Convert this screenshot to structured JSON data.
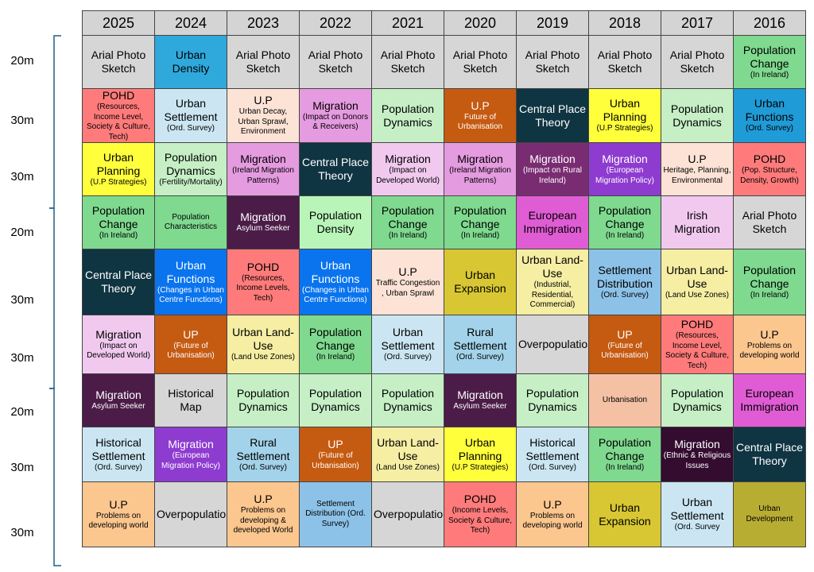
{
  "years": [
    "2025",
    "2024",
    "2023",
    "2022",
    "2021",
    "2020",
    "2019",
    "2018",
    "2017",
    "2016"
  ],
  "marks": [
    "20m",
    "30m",
    "30m",
    "20m",
    "30m",
    "30m",
    "20m",
    "30m",
    "30m"
  ],
  "rows": [
    [
      {
        "t": "Arial Photo Sketch",
        "bg": "#d6d6d6"
      },
      {
        "t": "Urban Density",
        "bg": "#2fa9dc"
      },
      {
        "t": "Arial Photo Sketch",
        "bg": "#d6d6d6"
      },
      {
        "t": "Arial Photo Sketch",
        "bg": "#d6d6d6"
      },
      {
        "t": "Arial Photo Sketch",
        "bg": "#d6d6d6"
      },
      {
        "t": "Arial Photo Sketch",
        "bg": "#d6d6d6"
      },
      {
        "t": "Arial Photo Sketch",
        "bg": "#d6d6d6"
      },
      {
        "t": "Arial Photo Sketch",
        "bg": "#d6d6d6"
      },
      {
        "t": "Arial Photo Sketch",
        "bg": "#d6d6d6"
      },
      {
        "t": "Population Change",
        "s": "(In Ireland)",
        "bg": "#7fd98f"
      }
    ],
    [
      {
        "t": "POHD",
        "s": "(Resources, Income Level, Society & Culture, Tech)",
        "bg": "#ff7b7b"
      },
      {
        "t": "Urban Settlement",
        "s": "(Ord. Survey)",
        "bg": "#cbe6f2"
      },
      {
        "t": "U.P",
        "s": "Urban Decay, Urban Sprawl, Environment",
        "bg": "#fde3d6"
      },
      {
        "t": "Migration",
        "s": "(Impact on Donors & Receivers)",
        "bg": "#e59be0"
      },
      {
        "t": "Population Dynamics",
        "bg": "#c6efc6"
      },
      {
        "t": "U.P",
        "s": "Future of Urbanisation",
        "bg": "#c55a11",
        "fg": "#ffffff"
      },
      {
        "t": "Central Place Theory",
        "bg": "#0f3442",
        "fg": "#ffffff"
      },
      {
        "t": "Urban Planning",
        "s": "(U.P Strategies)",
        "bg": "#ffff3c"
      },
      {
        "t": "Population Dynamics",
        "bg": "#c6efc6"
      },
      {
        "t": "Urban Functions",
        "s": "(Ord. Survey)",
        "bg": "#1f9bd7"
      }
    ],
    [
      {
        "t": "Urban Planning",
        "s": "(U.P Strategies)",
        "bg": "#ffff3c"
      },
      {
        "t": "Population Dynamics",
        "s": "(Fertility/Mortality)",
        "bg": "#c6efc6"
      },
      {
        "t": "Migration",
        "s": "(Ireland Migration Patterns)",
        "bg": "#e59be0"
      },
      {
        "t": "Central Place Theory",
        "bg": "#0f3442",
        "fg": "#ffffff"
      },
      {
        "t": "Migration",
        "s": "(Impact on Developed World)",
        "bg": "#f1c9ef"
      },
      {
        "t": "Migration",
        "s": "(Ireland Migration Patterns)",
        "bg": "#e59be0"
      },
      {
        "t": "Migration",
        "s": "(Impact on Rural Ireland)",
        "bg": "#7a2c72",
        "fg": "#ffffff"
      },
      {
        "t": "Migration",
        "s": "(European Migration Policy)",
        "bg": "#8e3bd0",
        "fg": "#ffffff"
      },
      {
        "t": "U.P",
        "s": "Heritage, Planning, Environmental",
        "bg": "#fde3d6"
      },
      {
        "t": "POHD",
        "s": "(Pop. Structure, Density, Growth)",
        "bg": "#ff7b7b"
      }
    ],
    [
      {
        "t": "Population Change",
        "s": "(In Ireland)",
        "bg": "#7fd98f"
      },
      {
        "t": "",
        "s": "Population Characteristics",
        "bg": "#7fd98f"
      },
      {
        "t": "Migration",
        "s": "Asylum Seeker",
        "bg": "#4b1c48",
        "fg": "#ffffff"
      },
      {
        "t": "Population Density",
        "bg": "#b9f5b9"
      },
      {
        "t": "Population Change",
        "s": "(In Ireland)",
        "bg": "#7fd98f"
      },
      {
        "t": "Population Change",
        "s": "(In Ireland)",
        "bg": "#7fd98f"
      },
      {
        "t": "European Immigration",
        "bg": "#e05cd4"
      },
      {
        "t": "Population Change",
        "s": "(In Ireland)",
        "bg": "#7fd98f"
      },
      {
        "t": "Irish Migration",
        "bg": "#f1c9ef"
      },
      {
        "t": "Arial Photo Sketch",
        "bg": "#d6d6d6"
      }
    ],
    [
      {
        "t": "Central Place Theory",
        "bg": "#0f3442",
        "fg": "#ffffff"
      },
      {
        "t": "Urban Functions",
        "s": "(Changes in Urban Centre Functions)",
        "bg": "#0a74ef",
        "fg": "#ffffff"
      },
      {
        "t": "POHD",
        "s": "(Resources, Income Levels, Tech)",
        "bg": "#ff7b7b"
      },
      {
        "t": "Urban Functions",
        "s": "(Changes in Urban Centre Functions)",
        "bg": "#0a74ef",
        "fg": "#ffffff"
      },
      {
        "t": "U.P",
        "s": "Traffic Congestion , Urban Sprawl",
        "bg": "#fde3d6"
      },
      {
        "t": "Urban Expansion",
        "bg": "#d8c732"
      },
      {
        "t": "Urban Land-Use",
        "s": "(Industrial, Residential, Commercial)",
        "bg": "#f5eea3"
      },
      {
        "t": "Settlement Distribution",
        "s": "(Ord. Survey)",
        "bg": "#8dc2e8"
      },
      {
        "t": "Urban Land-Use",
        "s": "(Land Use Zones)",
        "bg": "#f5eea3"
      },
      {
        "t": "Population Change",
        "s": "(In Ireland)",
        "bg": "#7fd98f"
      }
    ],
    [
      {
        "t": "Migration",
        "s": "(Impact on Developed World)",
        "bg": "#f1c9ef"
      },
      {
        "t": "UP",
        "s": "(Future of Urbanisation)",
        "bg": "#c55a11",
        "fg": "#ffffff"
      },
      {
        "t": "Urban Land-Use",
        "s": "(Land Use Zones)",
        "bg": "#f5eea3"
      },
      {
        "t": "Population Change",
        "s": "(In Ireland)",
        "bg": "#7fd98f"
      },
      {
        "t": "Urban Settlement",
        "s": "(Ord. Survey)",
        "bg": "#cbe6f2"
      },
      {
        "t": "Rural Settlement",
        "s": "(Ord. Survey)",
        "bg": "#a3d3ea"
      },
      {
        "t": "Overpopulation",
        "bg": "#d6d6d6"
      },
      {
        "t": "UP",
        "s": "(Future of Urbanisation)",
        "bg": "#c55a11",
        "fg": "#ffffff"
      },
      {
        "t": "POHD",
        "s": "(Resources, Income Level, Society & Culture, Tech)",
        "bg": "#ff7b7b"
      },
      {
        "t": "U.P",
        "s": "Problems on developing world",
        "bg": "#fcc68f"
      }
    ],
    [
      {
        "t": "Migration",
        "s": "Asylum Seeker",
        "bg": "#4b1c48",
        "fg": "#ffffff"
      },
      {
        "t": "Historical Map",
        "bg": "#d6d6d6"
      },
      {
        "t": "Population Dynamics",
        "bg": "#c6efc6"
      },
      {
        "t": "Population Dynamics",
        "bg": "#c6efc6"
      },
      {
        "t": "Population Dynamics",
        "bg": "#c6efc6"
      },
      {
        "t": "Migration",
        "s": "Asylum Seeker",
        "bg": "#4b1c48",
        "fg": "#ffffff"
      },
      {
        "t": "Population Dynamics",
        "bg": "#c6efc6"
      },
      {
        "t": "",
        "s": "Urbanisation",
        "bg": "#f5c1a5"
      },
      {
        "t": "Population Dynamics",
        "bg": "#c6efc6"
      },
      {
        "t": "European Immigration",
        "bg": "#e05cd4"
      }
    ],
    [
      {
        "t": "Historical Settlement",
        "s": "(Ord. Survey)",
        "bg": "#cbe6f2"
      },
      {
        "t": "Migration",
        "s": "(European Migration Policy)",
        "bg": "#8e3bd0",
        "fg": "#ffffff"
      },
      {
        "t": "Rural Settlement",
        "s": "(Ord. Survey)",
        "bg": "#a3d3ea"
      },
      {
        "t": "UP",
        "s": "(Future of Urbanisation)",
        "bg": "#c55a11",
        "fg": "#ffffff"
      },
      {
        "t": "Urban Land-Use",
        "s": "(Land Use Zones)",
        "bg": "#f5eea3"
      },
      {
        "t": "Urban Planning",
        "s": "(U.P Strategies)",
        "bg": "#ffff3c"
      },
      {
        "t": "Historical Settlement",
        "s": "(Ord. Survey)",
        "bg": "#cbe6f2"
      },
      {
        "t": "Population Change",
        "s": "(In Ireland)",
        "bg": "#7fd98f"
      },
      {
        "t": "Migration",
        "s": "(Ethnic & Religious Issues",
        "bg": "#330c30",
        "fg": "#ffffff"
      },
      {
        "t": "Central Place Theory",
        "bg": "#0f3442",
        "fg": "#ffffff"
      }
    ],
    [
      {
        "t": "U.P",
        "s": "Problems on developing world",
        "bg": "#fcc68f"
      },
      {
        "t": "Overpopulation",
        "bg": "#d6d6d6"
      },
      {
        "t": "U.P",
        "s": "Problems on developing & developed World",
        "bg": "#fcc68f"
      },
      {
        "t": "",
        "s": "Settlement Distribution (Ord. Survey)",
        "bg": "#8dc2e8"
      },
      {
        "t": "Overpopulation",
        "bg": "#d6d6d6"
      },
      {
        "t": "POHD",
        "s": "(Income Levels, Society & Culture, Tech)",
        "bg": "#ff7b7b"
      },
      {
        "t": "U.P",
        "s": "Problems on developing world",
        "bg": "#fcc68f"
      },
      {
        "t": "Urban Expansion",
        "bg": "#d8c732"
      },
      {
        "t": "Urban Settlement",
        "s": "(Ord. Survey",
        "bg": "#cbe6f2"
      },
      {
        "t": "",
        "s": "Urban Development",
        "bg": "#b8ad33"
      }
    ]
  ]
}
